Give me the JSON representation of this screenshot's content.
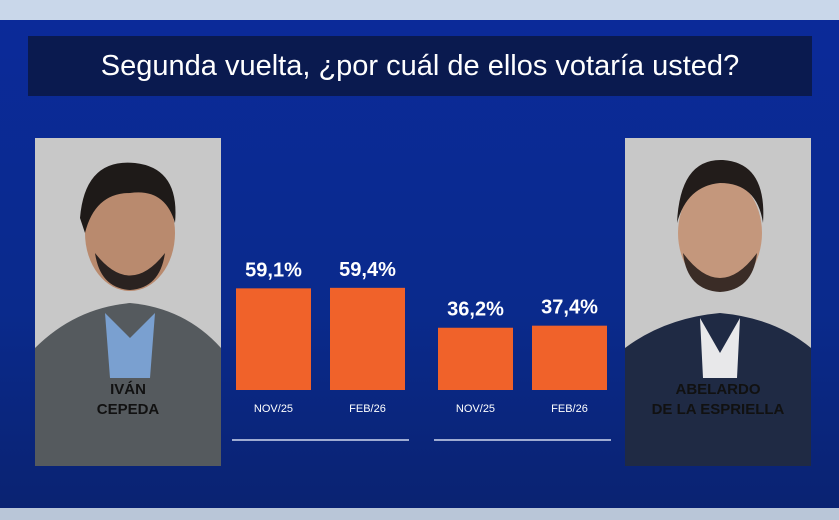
{
  "chart_data": {
    "type": "bar",
    "title": "Segunda vuelta, ¿por cuál de ellos votaría usted?",
    "categories": [
      "NOV/25",
      "FEB/26"
    ],
    "series": [
      {
        "name": "IVÁN\nCEPEDA",
        "color": "#f0622a",
        "values": [
          59.1,
          59.4
        ],
        "value_labels": [
          "59,1%",
          "59,4%"
        ]
      },
      {
        "name": "ABELARDO\nDE LA ESPRIELLA",
        "color": "#f0622a",
        "values": [
          36.2,
          37.4
        ],
        "value_labels": [
          "36,2%",
          "37,4%"
        ]
      }
    ]
  }
}
